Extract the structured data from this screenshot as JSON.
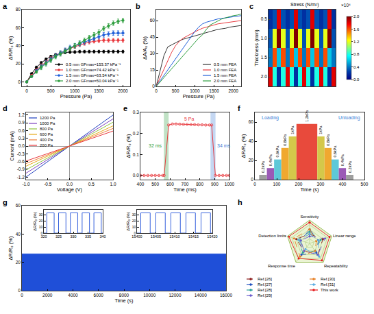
{
  "chart_data": [
    {
      "panel": "a",
      "type": "line",
      "x_label": "Pressure (Pa)",
      "y_label": "ΔR/R₀ (%)",
      "xlim": [
        -100,
        2150
      ],
      "xticks": [
        0,
        500,
        1000,
        1500,
        2000
      ],
      "ylim": [
        -5,
        80
      ],
      "yticks": [
        0,
        20,
        40,
        60,
        80
      ],
      "grid": false,
      "legend": "lower right",
      "marker": "circle",
      "x": [
        0,
        100,
        200,
        300,
        400,
        500,
        600,
        700,
        800,
        900,
        1000,
        1100,
        1200,
        1300,
        1400,
        1500,
        1600,
        1700,
        1800,
        1900,
        2000
      ],
      "series": [
        {
          "name": "0.5 mm GFmax=153.37 kPa⁻¹",
          "color": "#000000",
          "values": [
            0,
            9,
            16,
            21,
            25,
            28,
            30,
            31.5,
            32.5,
            33,
            33,
            33.5,
            33.5,
            33.5,
            33.5,
            33.5,
            33.5,
            33.5,
            33.5,
            33.5,
            33.5
          ],
          "errors": [
            0.5,
            1,
            1.5,
            1.5,
            1.5,
            1.5,
            1.5,
            1.5,
            1.5,
            1.5,
            1.5,
            1.5,
            1.5,
            1.5,
            1.5,
            1.5,
            1.5,
            1.5,
            1.5,
            1.5,
            1.5
          ]
        },
        {
          "name": "1.0 mm GFmax=74.42 kPa⁻¹",
          "color": "#e8383d",
          "values": [
            0,
            7,
            13,
            18,
            22,
            26,
            29,
            32,
            35,
            37,
            39,
            41,
            42.5,
            44,
            45,
            45.5,
            46,
            46,
            46,
            46,
            46
          ],
          "errors": [
            0.5,
            1,
            1.5,
            2,
            2,
            2,
            2,
            2,
            2,
            2,
            2,
            2,
            2,
            2,
            2,
            2,
            2,
            2,
            2,
            2,
            2
          ]
        },
        {
          "name": "1.5 mm GFmax=63.54 kPa⁻¹",
          "color": "#1f5fd8",
          "values": [
            0,
            6,
            12,
            17,
            21,
            25,
            29,
            32,
            35,
            38,
            40,
            42,
            44,
            46,
            48,
            50,
            52,
            53,
            54,
            54,
            54
          ],
          "errors": [
            0.5,
            1,
            1.5,
            2.5,
            2.5,
            2.5,
            2.5,
            2.5,
            2.5,
            2.5,
            2.5,
            2.5,
            2.5,
            2.5,
            2.5,
            2.5,
            2.5,
            2.5,
            2.5,
            2.5,
            2.5
          ]
        },
        {
          "name": "2.0 mm GFmax=50.04 kPa⁻¹",
          "color": "#2e9e3e",
          "values": [
            0,
            6,
            11,
            16,
            20,
            24,
            28,
            31,
            34,
            37,
            40,
            43,
            46,
            49,
            52,
            55,
            59,
            62,
            65,
            67,
            68
          ],
          "errors": [
            0.5,
            1,
            1.5,
            2.5,
            2.5,
            2.5,
            2.5,
            2.5,
            2.5,
            2.5,
            2.5,
            2.5,
            2.5,
            2.5,
            2.5,
            2.5,
            2.5,
            2.5,
            2.5,
            2.5,
            2.5
          ]
        }
      ]
    },
    {
      "panel": "b",
      "type": "line",
      "x_label": "Pressure (Pa)",
      "y_label": "ΔA/A₀ (%)",
      "xlim": [
        0,
        2200
      ],
      "xticks": [
        0,
        500,
        1000,
        1500,
        2000
      ],
      "ylim": [
        0,
        70
      ],
      "yticks": [
        0,
        15,
        30,
        45,
        60
      ],
      "grid": false,
      "legend": "lower right",
      "x": [
        0,
        100,
        200,
        300,
        400,
        500,
        600,
        700,
        800,
        900,
        1000,
        1100,
        1200,
        1300,
        1400,
        1500,
        1600,
        1700,
        1800,
        1900,
        2000,
        2100,
        2200
      ],
      "series": [
        {
          "name": "0.5 mm FEA",
          "color": "#333333",
          "values": [
            0,
            15,
            28,
            36,
            38,
            40,
            41.5,
            43,
            44,
            45,
            46,
            47,
            48,
            49,
            50,
            51,
            52,
            52.5,
            53,
            54,
            54.5,
            55,
            55.5
          ]
        },
        {
          "name": "1.0 mm FEA",
          "color": "#e8383d",
          "values": [
            0,
            8,
            16,
            24,
            31,
            37,
            41,
            44,
            46,
            48,
            50,
            51.5,
            53,
            54,
            55,
            56,
            57,
            57.5,
            58,
            58.5,
            59,
            59.5,
            60
          ]
        },
        {
          "name": "1.5 mm FEA",
          "color": "#1f5fd8",
          "values": [
            0,
            5,
            10,
            15,
            20,
            25,
            30,
            35,
            40,
            45,
            50,
            54,
            57,
            58.5,
            59.5,
            60.5,
            61.5,
            62,
            62.5,
            63,
            63.5,
            64,
            64.5
          ]
        },
        {
          "name": "2.0 mm FEA",
          "color": "#2e9e3e",
          "values": [
            0,
            4,
            8,
            12,
            16,
            20,
            24,
            28,
            32,
            36,
            40,
            44,
            47,
            52,
            56,
            58,
            60,
            61.5,
            62.5,
            63.5,
            64.5,
            65,
            66
          ]
        }
      ]
    },
    {
      "panel": "c",
      "type": "heatmap",
      "y_label": "Thickness (mm)",
      "tick_labels": "y",
      "y_categories": [
        "0.5",
        "1.0",
        "1.5",
        "2.0"
      ],
      "z": [
        [
          0.2,
          0.3,
          1.8,
          0.3,
          0.2,
          0.3,
          1.8,
          0.3,
          0.2,
          0.3,
          1.8,
          0.3,
          0.2,
          0.3,
          1.8,
          0.2
        ],
        [
          0.3,
          1.2,
          2.0,
          1.2,
          0.3,
          1.2,
          2.0,
          1.2,
          0.3,
          1.2,
          2.0,
          1.2,
          0.3,
          1.2,
          2.0,
          0.3
        ],
        [
          0.4,
          1.6,
          0.6,
          1.6,
          0.4,
          1.6,
          0.6,
          1.6,
          0.4,
          1.6,
          0.6,
          1.6,
          0.4,
          1.6,
          0.6,
          0.4
        ],
        [
          1.8,
          0.8,
          0.2,
          0.8,
          1.8,
          0.8,
          0.2,
          0.8,
          1.8,
          0.8,
          0.2,
          0.8,
          1.8,
          0.8,
          0.2,
          1.8
        ]
      ],
      "zlim": [
        0,
        2.0
      ],
      "zticks": [
        {
          "value": 0,
          "label": "0.0"
        },
        0.4,
        0.8,
        1.2,
        1.6,
        {
          "value": 2,
          "label": "2.0"
        }
      ],
      "colorbar_title": "Stress (N/m²)",
      "colorbar_unit": "×10⁴"
    },
    {
      "panel": "d",
      "type": "line",
      "x_label": "Voltage (V)",
      "y_label": "Current (mA)",
      "xlim": [
        -1,
        1
      ],
      "xticks": [
        {
          "value": -1,
          "label": "-1.0"
        },
        -0.5,
        {
          "value": 0,
          "label": "0.0"
        },
        0.5,
        {
          "value": 1,
          "label": "1.0"
        }
      ],
      "ylim": [
        -1.3,
        1.3
      ],
      "yticks": [
        -1.2,
        -0.9,
        -0.6,
        -0.3,
        {
          "value": 0,
          "label": "0.0"
        },
        0.3,
        0.6,
        0.9,
        1.2
      ],
      "grid": false,
      "legend": "upper left",
      "x": [
        -1,
        -0.5,
        0,
        0.5,
        1
      ],
      "series": [
        {
          "name": "1200 Pa",
          "color": "#1f3fbf",
          "values": [
            -1.2,
            -0.6,
            0,
            0.6,
            1.2
          ]
        },
        {
          "name": "1000 Pa",
          "color": "#7b3fbf",
          "values": [
            -1.05,
            -0.53,
            0,
            0.53,
            1.05
          ]
        },
        {
          "name": "800 Pa",
          "color": "#8cc43c",
          "values": [
            -0.92,
            -0.46,
            0,
            0.46,
            0.92
          ]
        },
        {
          "name": "600 Pa",
          "color": "#e6a817",
          "values": [
            -0.78,
            -0.39,
            0,
            0.39,
            0.78
          ]
        },
        {
          "name": "400 Pa",
          "color": "#f07f3c",
          "values": [
            -0.68,
            -0.34,
            0,
            0.34,
            0.68
          ]
        },
        {
          "name": "200 Pa",
          "color": "#e8383d",
          "values": [
            -0.58,
            -0.29,
            0,
            0.29,
            0.58
          ]
        }
      ]
    },
    {
      "panel": "e",
      "type": "line",
      "x_label": "Time (ms)",
      "y_label": "ΔR/R₀ (%)",
      "xlim": [
        400,
        1000
      ],
      "xticks": [
        400,
        500,
        600,
        700,
        800,
        900,
        1000
      ],
      "ylim": [
        -0.02,
        0.3
      ],
      "yticks": [
        {
          "value": 0,
          "label": "0.0"
        },
        0.1,
        0.2,
        0.3
      ],
      "grid": false,
      "marker": "circle-open",
      "x": [
        400,
        425,
        450,
        475,
        500,
        525,
        550,
        560,
        590,
        615,
        640,
        665,
        690,
        715,
        740,
        765,
        790,
        815,
        840,
        865,
        880,
        905,
        930,
        955,
        980,
        1000
      ],
      "series": [
        {
          "color": "#e8383d",
          "values": [
            0,
            0,
            0,
            0,
            0,
            0,
            0,
            0,
            0.24,
            0.245,
            0.245,
            0.244,
            0.243,
            0.243,
            0.242,
            0.242,
            0.241,
            0.241,
            0.24,
            0.24,
            0.24,
            0,
            0,
            0,
            0,
            0
          ]
        }
      ],
      "bands": [
        {
          "from": 558,
          "to": 590,
          "color": "#2e9e3e",
          "label": "32 ms"
        },
        {
          "from": 872,
          "to": 906,
          "color": "#3a7bd5",
          "label": "34 ms"
        }
      ],
      "annotations": [
        {
          "text": "5 Pa",
          "x": 730,
          "y": 0.27,
          "color": "#e8383d"
        }
      ]
    },
    {
      "panel": "f",
      "type": "bar",
      "x_label": "Time (s)",
      "y_label": "ΔR/R₀ (%)",
      "xlim": [
        0,
        500
      ],
      "xticks": [
        0,
        100,
        200,
        300,
        400,
        500
      ],
      "ylim": [
        0,
        70
      ],
      "yticks": [
        0,
        20,
        40,
        60
      ],
      "grid": false,
      "segments": [
        {
          "start": 20,
          "end": 55,
          "value": 5,
          "label": "0.2kPa",
          "color": "#9e9e9e"
        },
        {
          "start": 55,
          "end": 88,
          "value": 12,
          "label": "0.4kPa",
          "color": "#9b59b6"
        },
        {
          "start": 88,
          "end": 121,
          "value": 21,
          "label": "0.6kPa",
          "color": "#5ec8d8"
        },
        {
          "start": 121,
          "end": 155,
          "value": 33,
          "label": "0.8kPa",
          "color": "#f0a830"
        },
        {
          "start": 155,
          "end": 190,
          "value": 45,
          "label": "1kPa",
          "color": "#d4c84a"
        },
        {
          "start": 190,
          "end": 285,
          "value": 58,
          "label": "1.2kPa",
          "color": "#e84a3c"
        },
        {
          "start": 285,
          "end": 318,
          "value": 45,
          "label": "1kPa",
          "color": "#d4c84a"
        },
        {
          "start": 318,
          "end": 350,
          "value": 33,
          "label": "0.8kPa",
          "color": "#f0a830"
        },
        {
          "start": 350,
          "end": 383,
          "value": 21,
          "label": "0.6kPa",
          "color": "#5ec8d8"
        },
        {
          "start": 383,
          "end": 416,
          "value": 12,
          "label": "0.4kPa",
          "color": "#9b59b6"
        },
        {
          "start": 416,
          "end": 450,
          "value": 5,
          "label": "0.2kPa",
          "color": "#9e9e9e"
        }
      ],
      "annotations": [
        {
          "text": "Loading",
          "x": 70,
          "y": 64,
          "color": "#3a7bd5"
        },
        {
          "text": "Unloading",
          "x": 430,
          "y": 64,
          "color": "#3a7bd5"
        }
      ]
    },
    {
      "panel": "g",
      "type": "area",
      "x_label": "Time (s)",
      "y_label": "ΔR/R₀ (%)",
      "xlim": [
        0,
        16000
      ],
      "xticks": [
        0,
        2000,
        4000,
        6000,
        8000,
        10000,
        12000,
        14000,
        16000
      ],
      "ylim": [
        0,
        60
      ],
      "yticks": [
        0,
        20,
        40,
        60
      ],
      "grid": false,
      "color": "#1f4fd8",
      "band": {
        "x": [
          0,
          16000
        ],
        "lower": [
          0,
          0
        ],
        "upper": [
          26,
          26
        ]
      },
      "insets": [
        {
          "y_label": "ΔR/R₀ (%)",
          "xlim": [
            320,
            340
          ],
          "xticks": [
            320,
            325,
            330,
            335,
            340
          ],
          "ylim": [
            0,
            38
          ],
          "yticks": [
            0,
            10,
            20,
            30
          ],
          "x": [
            320,
            321,
            323.5,
            325,
            327.5,
            329,
            331.5,
            333,
            335.5,
            337,
            339.5,
            340
          ],
          "values": [
            0,
            33,
            0,
            33,
            0,
            33,
            0,
            33,
            0,
            33,
            0,
            0
          ]
        },
        {
          "y_label": "ΔR/R₀ (%)",
          "xlim": [
            15400,
            15420
          ],
          "xticks": [
            15400,
            15405,
            15410,
            15415,
            15420
          ],
          "ylim": [
            0,
            38
          ],
          "yticks": [
            0,
            10,
            20,
            30
          ],
          "x": [
            15400,
            15401,
            15403.5,
            15405,
            15407.5,
            15409,
            15411.5,
            15413,
            15415.5,
            15417,
            15419.5,
            15420
          ],
          "values": [
            0,
            33,
            0,
            33,
            0,
            33,
            0,
            33,
            0,
            33,
            0,
            0
          ]
        }
      ]
    },
    {
      "panel": "h",
      "type": "radar",
      "tick_labels": false,
      "legend": "bottom",
      "marker": "circle",
      "axes": [
        "Sensitivity",
        "Linear range",
        "Repeatability",
        "Response time",
        "Detection limits"
      ],
      "rlim": [
        0,
        5
      ],
      "series": [
        {
          "name": "Ref.[26]",
          "color": "#8b1a1a",
          "line_style": "dash",
          "values": [
            2,
            3,
            3,
            2,
            3
          ]
        },
        {
          "name": "Ref.[27]",
          "color": "#1f4fbf",
          "line_style": "dash",
          "values": [
            3,
            2,
            2.5,
            3,
            2
          ]
        },
        {
          "name": "Ref.[28]",
          "color": "#2aa198",
          "line_style": "dash",
          "values": [
            2.5,
            2.5,
            2,
            2.5,
            2.5
          ]
        },
        {
          "name": "Ref.[29]",
          "color": "#6a5acd",
          "line_style": "dash",
          "values": [
            1.5,
            3.5,
            3,
            2,
            2
          ]
        },
        {
          "name": "Ref.[30]",
          "color": "#e67e22",
          "line_style": "dash",
          "values": [
            3,
            1.5,
            2,
            3.5,
            3.5
          ]
        },
        {
          "name": "Ref.[31]",
          "color": "#5dade2",
          "line_style": "dash",
          "values": [
            2,
            2,
            3.5,
            1.5,
            2.5
          ]
        },
        {
          "name": "This work",
          "color": "#e41a1c",
          "line_style": "solid",
          "values": [
            4.5,
            4.5,
            4.5,
            4,
            4.7
          ]
        }
      ]
    }
  ]
}
